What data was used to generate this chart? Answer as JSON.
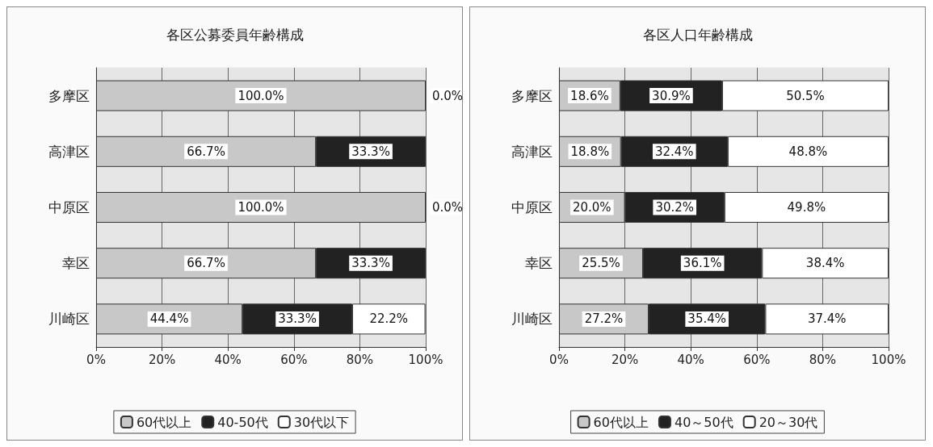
{
  "chart_data": [
    {
      "type": "bar",
      "orientation": "horizontal",
      "stacked": true,
      "title": "各区公募委員年齢構成",
      "categories": [
        "多摩区",
        "高津区",
        "中原区",
        "幸区",
        "川崎区"
      ],
      "xlim": [
        0,
        100
      ],
      "xticks": [
        {
          "value": 0,
          "label": "0%"
        },
        {
          "value": 20,
          "label": "20%"
        },
        {
          "value": 40,
          "label": "40%"
        },
        {
          "value": 60,
          "label": "60%"
        },
        {
          "value": 80,
          "label": "80%"
        },
        {
          "value": 100,
          "label": "100%"
        }
      ],
      "grid": "x",
      "legend": "bottom",
      "series": [
        {
          "name": "60代以上",
          "color": "#c8c8c8",
          "values": [
            100,
            66.7,
            100,
            66.7,
            44.4
          ],
          "value_labels": [
            "100.0%",
            "66.7%",
            "100.0%",
            "66.7%",
            "44.4%"
          ]
        },
        {
          "name": "40-50代",
          "color": "#222222",
          "values": [
            0,
            33.3,
            0,
            33.3,
            33.3
          ],
          "value_labels": [
            "0.0%",
            "33.3%",
            "0.0%",
            "33.3%",
            "33.3%"
          ]
        },
        {
          "name": "30代以下",
          "color": "#ffffff",
          "values": [
            0,
            0,
            0,
            0,
            22.2
          ],
          "value_labels": [
            null,
            null,
            null,
            null,
            "22.2%"
          ]
        }
      ]
    },
    {
      "type": "bar",
      "orientation": "horizontal",
      "stacked": true,
      "title": "各区人口年齢構成",
      "categories": [
        "多摩区",
        "高津区",
        "中原区",
        "幸区",
        "川崎区"
      ],
      "xlim": [
        0,
        100
      ],
      "xticks": [
        {
          "value": 0,
          "label": "0%"
        },
        {
          "value": 20,
          "label": "20%"
        },
        {
          "value": 40,
          "label": "40%"
        },
        {
          "value": 60,
          "label": "60%"
        },
        {
          "value": 80,
          "label": "80%"
        },
        {
          "value": 100,
          "label": "100%"
        }
      ],
      "grid": "x",
      "legend": "bottom",
      "series": [
        {
          "name": "60代以上",
          "color": "#c8c8c8",
          "values": [
            18.6,
            18.8,
            20.0,
            25.5,
            27.2
          ],
          "value_labels": [
            "18.6%",
            "18.8%",
            "20.0%",
            "25.5%",
            "27.2%"
          ]
        },
        {
          "name": "40～50代",
          "color": "#222222",
          "values": [
            30.9,
            32.4,
            30.2,
            36.1,
            35.4
          ],
          "value_labels": [
            "30.9%",
            "32.4%",
            "30.2%",
            "36.1%",
            "35.4%"
          ]
        },
        {
          "name": "20～30代",
          "color": "#ffffff",
          "values": [
            50.5,
            48.8,
            49.8,
            38.4,
            37.4
          ],
          "value_labels": [
            "50.5%",
            "48.8%",
            "49.8%",
            "38.4%",
            "37.4%"
          ]
        }
      ]
    }
  ]
}
